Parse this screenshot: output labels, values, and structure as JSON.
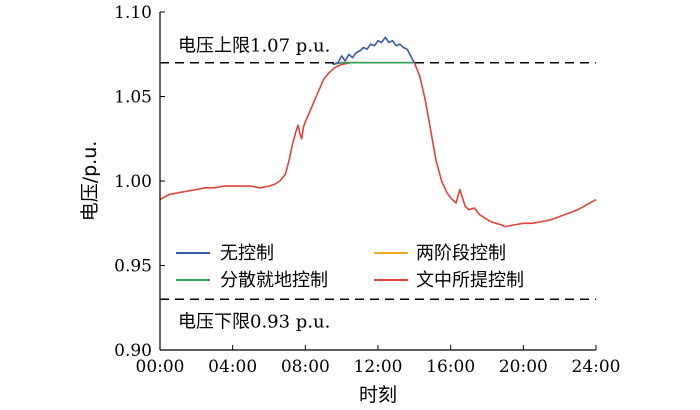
{
  "chart_data": {
    "type": "line",
    "xlabel": "时刻",
    "ylabel": "电压/p.u.",
    "x_ticks": [
      "00:00",
      "04:00",
      "08:00",
      "12:00",
      "16:00",
      "20:00",
      "24:00"
    ],
    "y_ticks": [
      "0.90",
      "0.95",
      "1.00",
      "1.05",
      "1.10"
    ],
    "xlim": [
      0,
      24
    ],
    "ylim": [
      0.9,
      1.1
    ],
    "x_unit": "hours",
    "legend_position": "lower-left",
    "legend_columns": 2,
    "reference_lines": [
      {
        "label": "电压上限1.07 p.u.",
        "value": 1.07,
        "style": "dashed",
        "color": "#000000"
      },
      {
        "label": "电压下限0.93 p.u.",
        "value": 0.93,
        "style": "dashed",
        "color": "#000000"
      }
    ],
    "series": [
      {
        "name": "无控制",
        "color": "#3a5ba7",
        "x": [
          9.5,
          9.8,
          10.0,
          10.2,
          10.4,
          10.6,
          10.8,
          11.0,
          11.2,
          11.4,
          11.6,
          11.8,
          12.0,
          12.2,
          12.4,
          12.6,
          12.8,
          13.0,
          13.2,
          13.4,
          13.6,
          13.8,
          14.0
        ],
        "values": [
          1.069,
          1.07,
          1.074,
          1.071,
          1.075,
          1.073,
          1.076,
          1.077,
          1.079,
          1.078,
          1.081,
          1.08,
          1.083,
          1.082,
          1.085,
          1.082,
          1.083,
          1.08,
          1.081,
          1.079,
          1.078,
          1.074,
          1.07
        ]
      },
      {
        "name": "两阶段控制",
        "color": "#f5a623",
        "x": [
          9.5,
          10.0,
          11.0,
          12.0,
          13.0,
          14.0
        ],
        "values": [
          1.069,
          1.07,
          1.07,
          1.07,
          1.07,
          1.07
        ]
      },
      {
        "name": "分散就地控制",
        "color": "#2ca25f",
        "x": [
          9.5,
          10.0,
          11.0,
          12.0,
          13.0,
          14.0
        ],
        "values": [
          1.069,
          1.07,
          1.07,
          1.07,
          1.07,
          1.07
        ]
      },
      {
        "name": "文中所提控制",
        "color": "#e0443a",
        "x": [
          0,
          0.5,
          1,
          1.5,
          2,
          2.5,
          3,
          3.5,
          4,
          4.5,
          5,
          5.5,
          6,
          6.3,
          6.6,
          6.9,
          7.1,
          7.3,
          7.5,
          7.6,
          7.7,
          7.8,
          7.9,
          8.0,
          8.2,
          8.4,
          8.6,
          8.8,
          9.0,
          9.3,
          9.6,
          10.0,
          10.5,
          11.0,
          11.5,
          12.0,
          12.5,
          13.0,
          13.5,
          14.0,
          14.3,
          14.6,
          14.9,
          15.2,
          15.5,
          15.8,
          16.0,
          16.3,
          16.5,
          16.8,
          17.0,
          17.3,
          17.6,
          17.9,
          18.2,
          18.5,
          18.8,
          19.0,
          19.5,
          20.0,
          20.5,
          21.0,
          21.5,
          22.0,
          22.5,
          23.0,
          23.5,
          24.0
        ],
        "values": [
          0.989,
          0.992,
          0.993,
          0.994,
          0.995,
          0.996,
          0.996,
          0.997,
          0.997,
          0.997,
          0.997,
          0.996,
          0.997,
          0.998,
          1.0,
          1.004,
          1.012,
          1.022,
          1.03,
          1.033,
          1.028,
          1.025,
          1.032,
          1.035,
          1.04,
          1.045,
          1.05,
          1.055,
          1.06,
          1.064,
          1.067,
          1.069,
          1.07,
          1.07,
          1.07,
          1.07,
          1.07,
          1.07,
          1.07,
          1.07,
          1.062,
          1.048,
          1.03,
          1.012,
          1.0,
          0.993,
          0.99,
          0.987,
          0.995,
          0.985,
          0.983,
          0.984,
          0.98,
          0.978,
          0.976,
          0.975,
          0.974,
          0.973,
          0.974,
          0.975,
          0.975,
          0.976,
          0.977,
          0.979,
          0.981,
          0.983,
          0.986,
          0.989
        ]
      }
    ]
  }
}
